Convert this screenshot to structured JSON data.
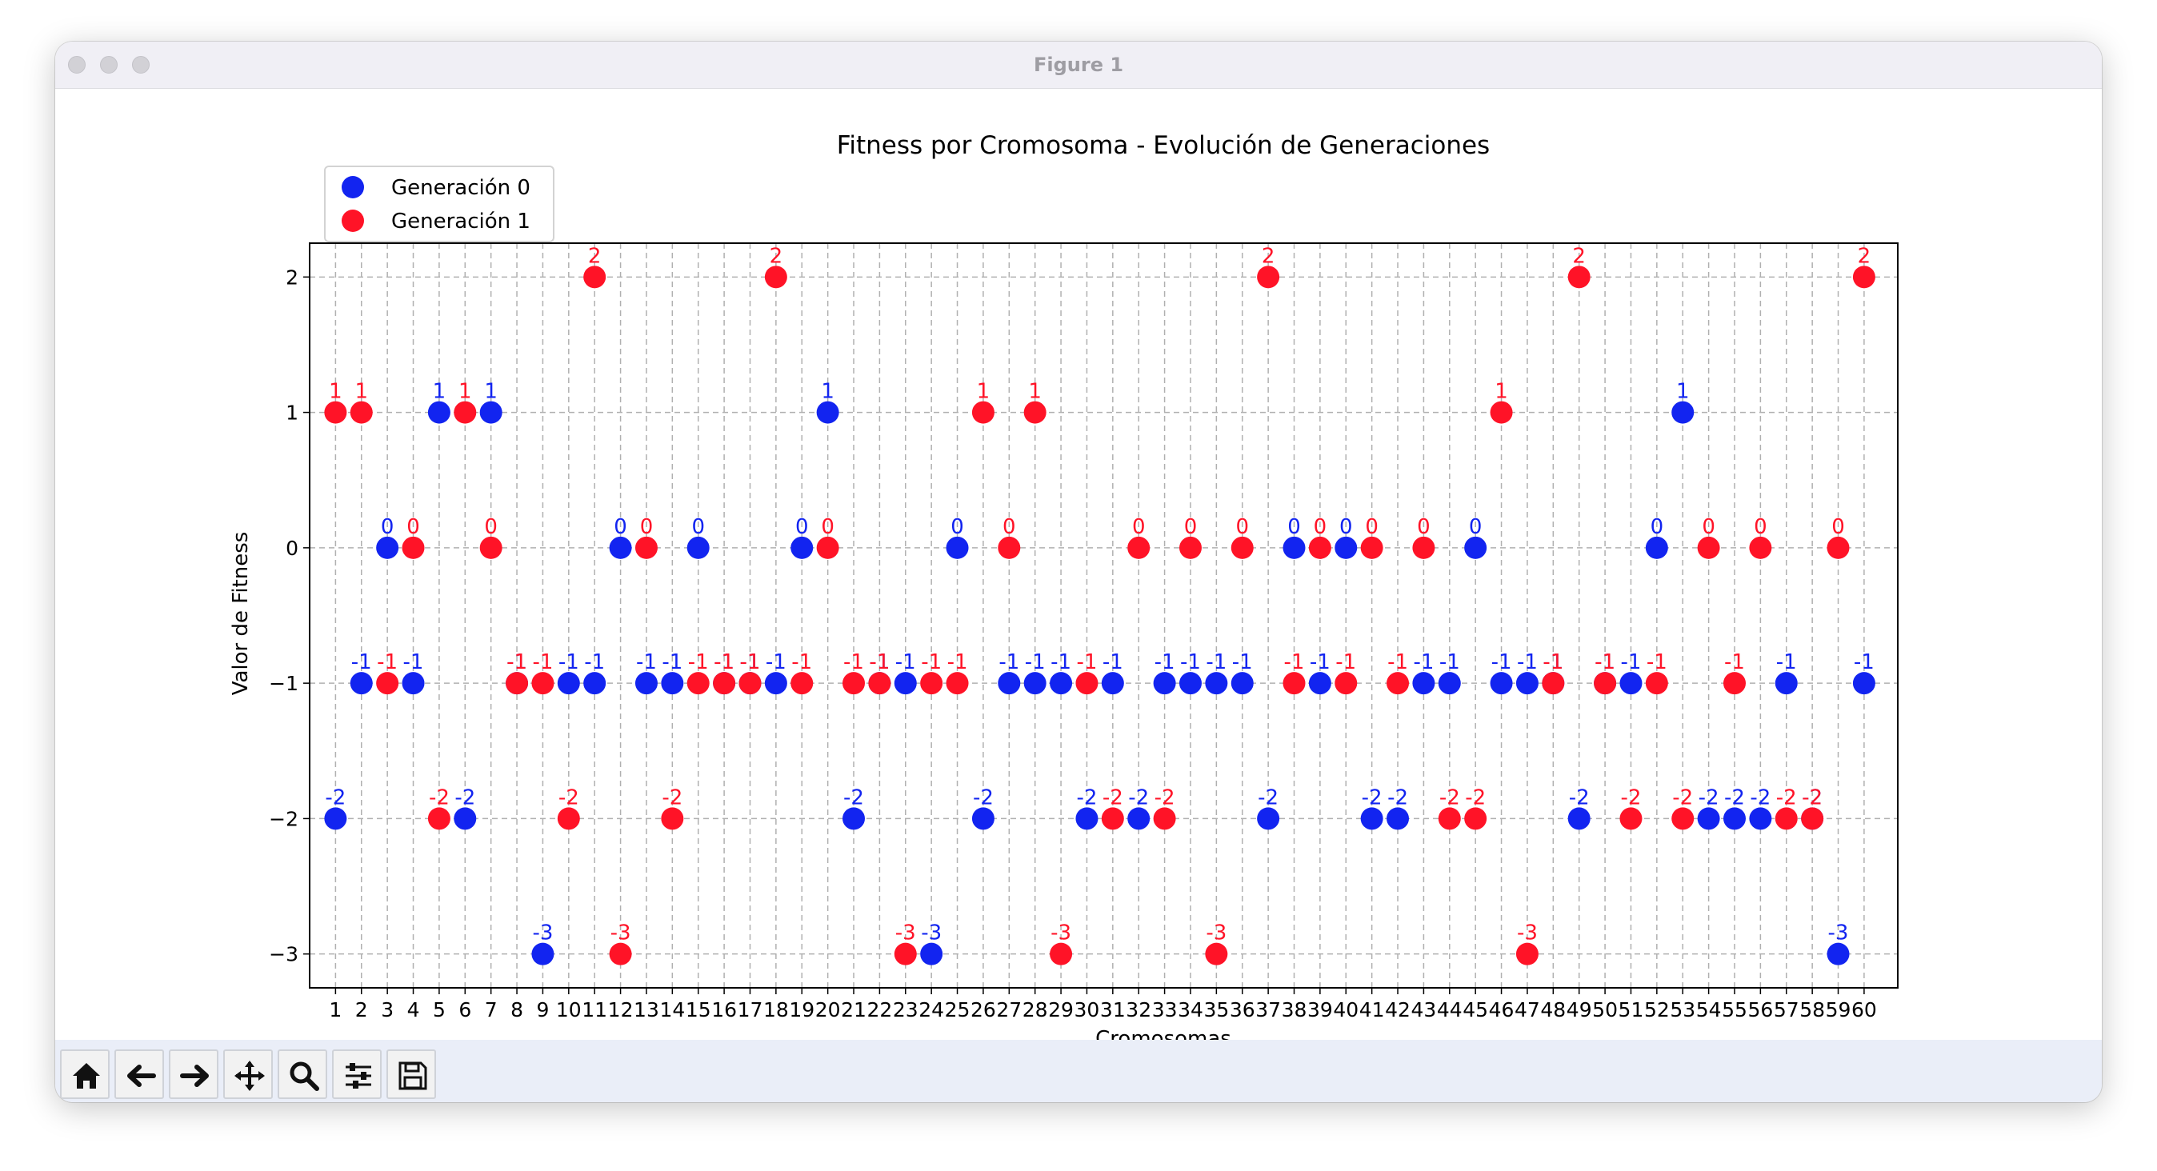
{
  "window": {
    "title": "Figure 1"
  },
  "toolbar": {
    "buttons": [
      {
        "name": "home-button",
        "icon": "home-icon"
      },
      {
        "name": "back-button",
        "icon": "arrow-left-icon"
      },
      {
        "name": "forward-button",
        "icon": "arrow-right-icon"
      },
      {
        "name": "pan-button",
        "icon": "move-icon"
      },
      {
        "name": "zoom-button",
        "icon": "magnifier-icon"
      },
      {
        "name": "configure-subplots-button",
        "icon": "sliders-icon"
      },
      {
        "name": "save-button",
        "icon": "floppy-disk-icon"
      }
    ]
  },
  "chart_data": {
    "type": "scatter",
    "title": "Fitness por Cromosoma - Evolución de Generaciones",
    "xlabel": "Cromosomas",
    "ylabel": "Valor de Fitness",
    "xlim": [
      0,
      61.3
    ],
    "ylim": [
      -3.25,
      2.25
    ],
    "yticks": [
      2,
      1,
      0,
      -1,
      -2,
      -3
    ],
    "ytick_labels": [
      "2",
      "1",
      "0",
      "−1",
      "−2",
      "−3"
    ],
    "xticks": [
      "1",
      "2",
      "3",
      "4",
      "5",
      "6",
      "7",
      "8",
      "9",
      "10",
      "11",
      "12",
      "13",
      "14",
      "15",
      "16",
      "17",
      "18",
      "19",
      "20",
      "21",
      "22",
      "23",
      "24",
      "25",
      "26",
      "27",
      "28",
      "29",
      "30",
      "31",
      "32",
      "33",
      "34",
      "35",
      "36",
      "37",
      "38",
      "39",
      "40",
      "41",
      "42",
      "43",
      "44",
      "45",
      "46",
      "47",
      "48",
      "49",
      "50",
      "51",
      "52",
      "53",
      "54",
      "55",
      "56",
      "57",
      "58",
      "59",
      "60"
    ],
    "grid": true,
    "legend": "top-left",
    "series": [
      {
        "name": "Generación 0",
        "color": "#1224f0",
        "values": [
          -2,
          -1,
          0,
          -1,
          1,
          -2,
          1,
          -1,
          -3,
          -1,
          -1,
          0,
          -1,
          -1,
          0,
          -1,
          -1,
          -1,
          0,
          1,
          -2,
          -1,
          -1,
          -3,
          0,
          -2,
          -1,
          -1,
          -1,
          -2,
          -1,
          -2,
          -1,
          -1,
          -1,
          -1,
          -2,
          0,
          -1,
          0,
          -2,
          -2,
          -1,
          -1,
          0,
          -1,
          -1,
          -1,
          -2,
          -1,
          -1,
          0,
          1,
          -2,
          -2,
          -2,
          -1,
          -2,
          -3,
          -1
        ]
      },
      {
        "name": "Generación 1",
        "color": "#ff1327",
        "values": [
          1,
          1,
          -1,
          0,
          -2,
          1,
          0,
          -1,
          -1,
          -2,
          2,
          -3,
          0,
          -2,
          -1,
          -1,
          -1,
          2,
          -1,
          0,
          -1,
          -1,
          -3,
          -1,
          -1,
          1,
          0,
          1,
          -3,
          -1,
          -2,
          0,
          -2,
          0,
          -3,
          0,
          2,
          -1,
          0,
          -1,
          0,
          -1,
          0,
          -2,
          -2,
          1,
          -3,
          -1,
          2,
          -1,
          -2,
          -1,
          -2,
          0,
          -1,
          0,
          -2,
          -2,
          0,
          2
        ]
      }
    ]
  }
}
